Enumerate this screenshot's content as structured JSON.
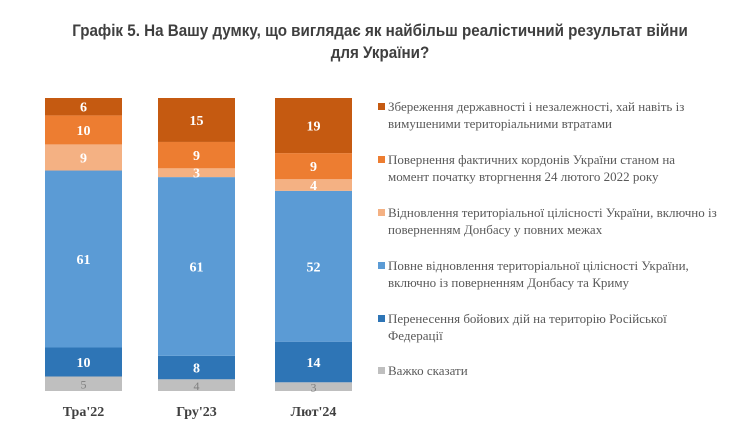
{
  "title": "Графік 5. На Вашу думку, що виглядає як найбільш реалістичний результат війни для України?",
  "chart_data": {
    "type": "bar",
    "stacked": true,
    "title": "Графік 5. На Вашу думку, що виглядає як найбільш реалістичний результат війни для України?",
    "categories": [
      "Тра'22",
      "Гру'23",
      "Лют'24"
    ],
    "series": [
      {
        "name": "Важко сказати",
        "color": "#BFBFBF",
        "values": [
          5,
          4,
          3
        ]
      },
      {
        "name": "Перенесення бойових дій на територію Російської Федерації",
        "color": "#2E75B6",
        "values": [
          10,
          8,
          14
        ]
      },
      {
        "name": "Повне відновлення територіальної цілісності України, включно із поверненням Донбасу та Криму",
        "color": "#5B9BD5",
        "values": [
          61,
          61,
          52
        ]
      },
      {
        "name": "Відновлення територіальної цілісності України, включно із поверненням Донбасу у повних межах",
        "color": "#F4B183",
        "values": [
          9,
          3,
          4
        ]
      },
      {
        "name": "Повернення фактичних кордонів України станом на момент початку вторгнення 24 лютого 2022 року",
        "color": "#ED7D31",
        "values": [
          10,
          9,
          9
        ]
      },
      {
        "name": "Збереження державності і незалежності, хай навіть із вимушеними територіальними втратами",
        "color": "#C55A11",
        "values": [
          6,
          15,
          19
        ]
      }
    ],
    "legend": "right",
    "grid": false
  }
}
